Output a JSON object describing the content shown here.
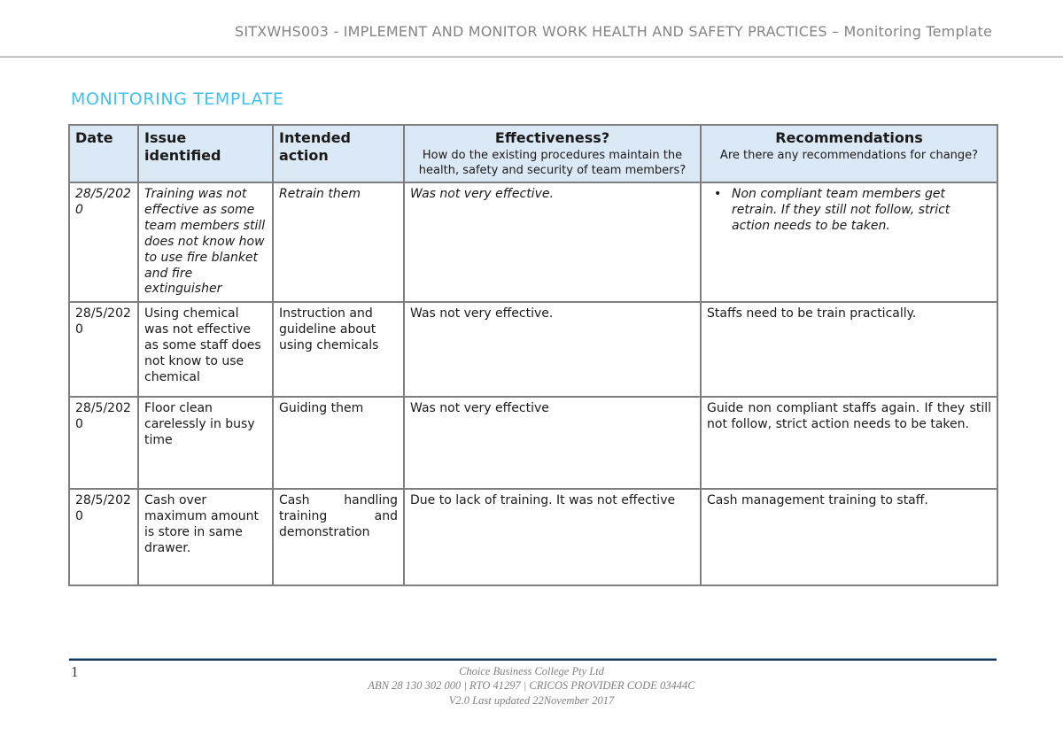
{
  "page": {
    "header_title": "SITXWHS003 - IMPLEMENT AND MONITOR WORK HEALTH AND SAFETY PRACTICES – Monitoring Template",
    "section_title": "MONITORING TEMPLATE"
  },
  "table": {
    "headers": {
      "date": "Date",
      "issue": "Issue identified",
      "action": "Intended action",
      "effectiveness": "Effectiveness?",
      "effectiveness_sub": "How do the existing procedures maintain the health, safety and security of team members?",
      "recommendations": "Recommendations",
      "recommendations_sub": "Are there any recommendations for change?"
    },
    "rows": [
      {
        "date": "28/5/2020",
        "issue": "Training was not effective as some team members still does not know how to use fire blanket and fire extinguisher",
        "action": "Retrain them",
        "effectiveness": "Was not very effective.",
        "recommendation_bullet": "•",
        "recommendation": "Non compliant team members get retrain. If they still not follow, strict action needs to be taken."
      },
      {
        "date": "28/5/2020",
        "issue": "Using chemical was not effective as some staff does not know to use chemical",
        "action": "Instruction and guideline about using chemicals",
        "effectiveness": "Was not very effective.",
        "recommendation": "Staffs need to be train practically."
      },
      {
        "date": "28/5/2020",
        "issue": "Floor clean carelessly in busy time",
        "action": "Guiding them",
        "effectiveness": "Was not very effective",
        "recommendation": "Guide non compliant staffs again. If they still not follow, strict action needs to be taken."
      },
      {
        "date": "28/5/2020",
        "issue": "Cash over maximum amount is store in same drawer.",
        "action": "Cash handling training and demonstration",
        "effectiveness": "Due to lack of training. It was not effective",
        "recommendation": "Cash management training to staff."
      }
    ]
  },
  "footer": {
    "page_number": "1",
    "line1": "Choice Business College Pty Ltd",
    "line2": "ABN 28 130 302 000 | RTO 41297 | CRICOS PROVIDER CODE 03444C",
    "line3": "V2.0 Last updated 22November 2017"
  },
  "colors": {
    "title_blue": "#41c0f0",
    "table_header_bg": "#dbe9f6",
    "table_border": "#7f7f7f",
    "footer_rule_navy": "#17365d",
    "header_text_gray": "#848484"
  }
}
